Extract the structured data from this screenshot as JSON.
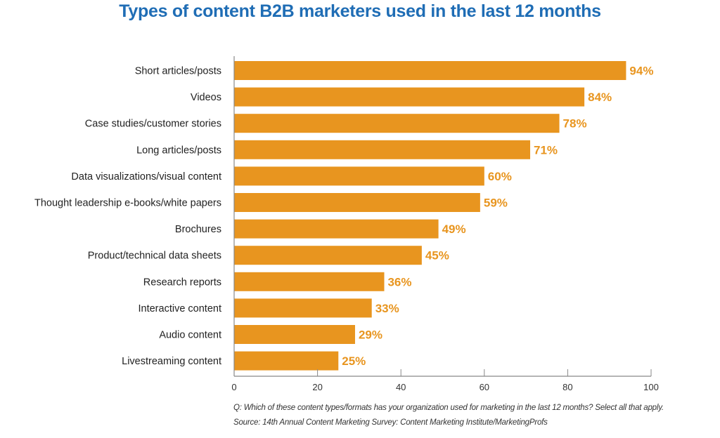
{
  "chart_data": {
    "type": "bar",
    "orientation": "horizontal",
    "title": "Types of content B2B marketers used in the last 12 months",
    "categories": [
      "Short articles/posts",
      "Videos",
      "Case studies/customer stories",
      "Long articles/posts",
      "Data visualizations/visual content",
      "Thought leadership e-books/white papers",
      "Brochures",
      "Product/technical data sheets",
      "Research reports",
      "Interactive content",
      "Audio content",
      "Livestreaming content"
    ],
    "values": [
      94,
      84,
      78,
      71,
      60,
      59,
      49,
      45,
      36,
      33,
      29,
      25
    ],
    "data_labels": [
      "94%",
      "84%",
      "78%",
      "71%",
      "60%",
      "59%",
      "49%",
      "45%",
      "36%",
      "33%",
      "29%",
      "25%"
    ],
    "xlim": [
      0,
      100
    ],
    "xticks": [
      "0",
      "20",
      "40",
      "60",
      "80",
      "100"
    ],
    "grid": false,
    "legend": "none",
    "colors": {
      "bar": "#e8951f",
      "label": "#e8951f",
      "title": "#1f6db5"
    }
  },
  "footnotes": {
    "question": "Q: Which of these content types/formats has your organization used for marketing in the last 12 months? Select all that apply.",
    "source": "Source: 14th Annual Content Marketing Survey: Content Marketing Institute/MarketingProfs"
  }
}
